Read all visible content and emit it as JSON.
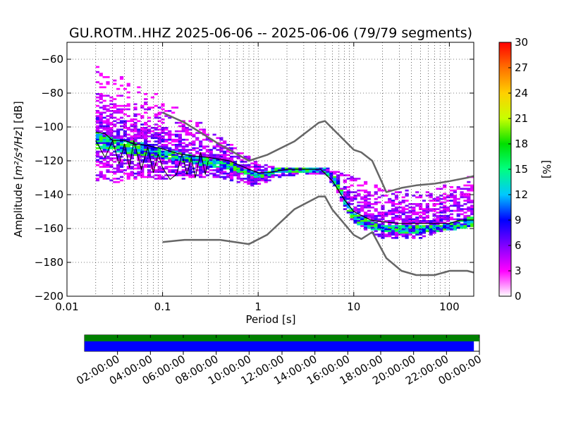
{
  "chart_data": {
    "type": "heatmap",
    "title": "GU.ROTM..HHZ   2025-06-06 -- 2025-06-06  (79/79 segments)",
    "xlabel": "Period [s]",
    "ylabel_prefix": "Amplitude [",
    "ylabel_math": "m²/s⁴/Hz",
    "ylabel_suffix": "] [dB]",
    "xscale": "log",
    "xlim": [
      0.01,
      180
    ],
    "ylim": [
      -200,
      -50
    ],
    "grid": true,
    "x_ticks": [
      {
        "value": 0.01,
        "label": "0.01"
      },
      {
        "value": 0.1,
        "label": "0.1"
      },
      {
        "value": 1,
        "label": "1"
      },
      {
        "value": 10,
        "label": "10"
      },
      {
        "value": 100,
        "label": "100"
      }
    ],
    "y_ticks": [
      {
        "value": -60,
        "label": "−60"
      },
      {
        "value": -80,
        "label": "−80"
      },
      {
        "value": -100,
        "label": "−100"
      },
      {
        "value": -120,
        "label": "−120"
      },
      {
        "value": -140,
        "label": "−140"
      },
      {
        "value": -160,
        "label": "−160"
      },
      {
        "value": -180,
        "label": "−180"
      },
      {
        "value": -200,
        "label": "−200"
      }
    ],
    "colorbar": {
      "label": "[%]",
      "min": 0,
      "max": 30,
      "ticks": [
        "0",
        "3",
        "6",
        "9",
        "12",
        "15",
        "18",
        "21",
        "24",
        "27",
        "30"
      ],
      "colors": [
        "#ffffff",
        "#ff00ff",
        "#8000ff",
        "#0000ff",
        "#00c8ff",
        "#00ff80",
        "#00e000",
        "#c8ff00",
        "#ffd000",
        "#ff7000",
        "#ff0000"
      ]
    },
    "nhnm": {
      "name": "NHNM",
      "color": "#666666",
      "x": [
        0.1,
        0.17,
        0.4,
        0.8,
        1.24,
        2.4,
        4.3,
        5.0,
        6.0,
        10,
        12,
        15.6,
        21.9,
        31.6,
        45,
        70,
        101,
        154,
        180
      ],
      "y": [
        -91.5,
        -97.4,
        -110.5,
        -120,
        -116.5,
        -108.5,
        -97.5,
        -96.5,
        -101,
        -113.5,
        -115,
        -120.0,
        -138.5,
        -136,
        -134.5,
        -133.5,
        -132,
        -130,
        -129
      ]
    },
    "nlnm": {
      "name": "NLNM",
      "color": "#666666",
      "x": [
        0.1,
        0.17,
        0.4,
        0.8,
        1.24,
        2.4,
        4.3,
        5.0,
        6.0,
        10,
        12,
        15.6,
        21.9,
        31.6,
        45,
        70,
        101,
        154,
        180
      ],
      "y": [
        -168,
        -166.7,
        -166.7,
        -169.2,
        -163.7,
        -148.6,
        -141.1,
        -141.1,
        -149,
        -163.8,
        -166.2,
        -162.1,
        -177.5,
        -185,
        -187.5,
        -187.5,
        -185,
        -185,
        -186
      ]
    },
    "psd_bands": {
      "x": [
        0.02,
        0.03,
        0.05,
        0.08,
        0.12,
        0.2,
        0.3,
        0.5,
        0.8,
        1.0,
        1.5,
        2.5,
        4.0,
        5.0,
        6.5,
        8.0,
        10,
        15,
        20,
        30,
        50,
        80,
        120,
        180
      ],
      "upper": [
        -62,
        -68,
        -75,
        -80,
        -86,
        -93,
        -102,
        -110,
        -118,
        -122,
        -124,
        -124,
        -124,
        -124,
        -126,
        -128,
        -130,
        -133,
        -136,
        -137,
        -138,
        -136,
        -132,
        -128
      ],
      "lower": [
        -132,
        -133,
        -132,
        -131,
        -131,
        -130,
        -129,
        -131,
        -134,
        -135,
        -130,
        -128,
        -127,
        -128,
        -136,
        -148,
        -156,
        -162,
        -165,
        -166,
        -165,
        -162,
        -160,
        -158
      ],
      "core_upper": [
        -102,
        -106,
        -108,
        -110,
        -113,
        -116,
        -118,
        -120,
        -125,
        -127,
        -124,
        -124,
        -124,
        -124,
        -129,
        -140,
        -150,
        -155,
        -157,
        -158,
        -158,
        -157,
        -155,
        -152
      ],
      "core_lower": [
        -112,
        -114,
        -116,
        -117,
        -119,
        -121,
        -123,
        -125,
        -128,
        -130,
        -127,
        -126,
        -126,
        -127,
        -134,
        -146,
        -156,
        -160,
        -161,
        -162,
        -162,
        -161,
        -160,
        -158
      ]
    },
    "mode_line": {
      "color": "#000000",
      "x": [
        0.02,
        0.025,
        0.03,
        0.04,
        0.05,
        0.07,
        0.1,
        0.15,
        0.2,
        0.3,
        0.5,
        0.8,
        1.0,
        1.3,
        2.0,
        3.0,
        4.5,
        6.0,
        8.0,
        10,
        15,
        20,
        30,
        50,
        100,
        130,
        180
      ],
      "y": [
        -103,
        -104,
        -108,
        -108,
        -110,
        -111,
        -113,
        -116,
        -117,
        -118,
        -120,
        -125,
        -127,
        -127,
        -125,
        -125,
        -125,
        -132,
        -143,
        -150,
        -155,
        -156,
        -157,
        -157,
        -157,
        -155,
        -155
      ]
    },
    "min_line": {
      "color": "#000000",
      "x": [
        0.02,
        0.025,
        0.03,
        0.035,
        0.04,
        0.045,
        0.05,
        0.06,
        0.07,
        0.08,
        0.09,
        0.1,
        0.12,
        0.14,
        0.16,
        0.18,
        0.2,
        0.22,
        0.25,
        0.28,
        0.3
      ],
      "y": [
        -108,
        -118,
        -108,
        -122,
        -110,
        -124,
        -108,
        -125,
        -112,
        -127,
        -116,
        -124,
        -131,
        -128,
        -116,
        -128,
        -118,
        -130,
        -115,
        -128,
        -120
      ]
    },
    "segment_bars": {
      "time_ticks": [
        "02:00:00",
        "04:00:00",
        "06:00:00",
        "08:00:00",
        "10:00:00",
        "12:00:00",
        "14:00:00",
        "16:00:00",
        "18:00:00",
        "20:00:00",
        "22:00:00",
        "00:00:00"
      ],
      "data_color": "#008000",
      "psd_color": "#0000ff",
      "data_coverage": 1.0,
      "psd_coverage": 0.986
    }
  }
}
